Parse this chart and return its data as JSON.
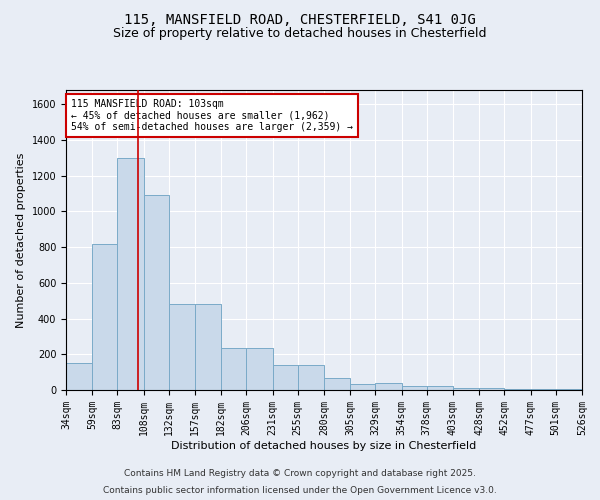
{
  "title1": "115, MANSFIELD ROAD, CHESTERFIELD, S41 0JG",
  "title2": "Size of property relative to detached houses in Chesterfield",
  "xlabel": "Distribution of detached houses by size in Chesterfield",
  "ylabel": "Number of detached properties",
  "bar_values": [
    150,
    820,
    1300,
    1090,
    480,
    480,
    235,
    235,
    140,
    140,
    70,
    35,
    40,
    20,
    20,
    10,
    10,
    5,
    5,
    5
  ],
  "bin_edges": [
    34,
    59,
    83,
    108,
    132,
    157,
    182,
    206,
    231,
    255,
    280,
    305,
    329,
    354,
    378,
    403,
    428,
    452,
    477,
    501,
    526
  ],
  "bar_color": "#c9d9ea",
  "bar_edge_color": "#7aaac8",
  "bar_edge_width": 0.7,
  "property_size": 103,
  "red_line_color": "#cc0000",
  "annotation_text": "115 MANSFIELD ROAD: 103sqm\n← 45% of detached houses are smaller (1,962)\n54% of semi-detached houses are larger (2,359) →",
  "annotation_box_color": "#ffffff",
  "annotation_border_color": "#cc0000",
  "ylim": [
    0,
    1680
  ],
  "yticks": [
    0,
    200,
    400,
    600,
    800,
    1000,
    1200,
    1400,
    1600
  ],
  "footer1": "Contains HM Land Registry data © Crown copyright and database right 2025.",
  "footer2": "Contains public sector information licensed under the Open Government Licence v3.0.",
  "bg_color": "#e8edf5",
  "plot_bg_color": "#e8edf5",
  "grid_color": "#ffffff",
  "title1_fontsize": 10,
  "title2_fontsize": 9,
  "xlabel_fontsize": 8,
  "ylabel_fontsize": 8,
  "tick_fontsize": 7,
  "annotation_fontsize": 7,
  "footer_fontsize": 6.5
}
